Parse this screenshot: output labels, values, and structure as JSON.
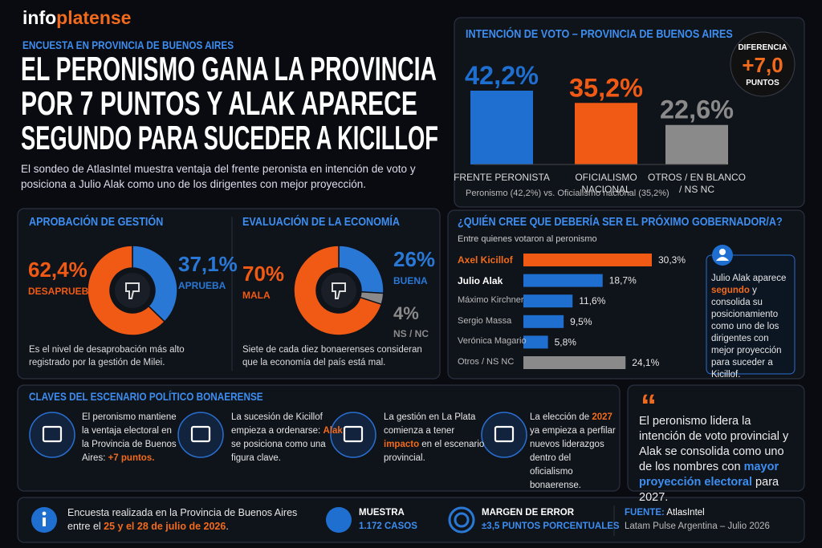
{
  "header": {
    "brand": [
      "info",
      "platense"
    ],
    "kicker": "ENCUESTA EN PROVINCIA DE BUENOS AIRES",
    "headline": [
      "EL PERONISMO GANA LA PROVINCIA",
      "POR 7 PUNTOS Y ALAK APARECE",
      "SEGUNDO PARA SUCEDER A KICILLOF"
    ],
    "intro": "El sondeo de AtlasIntel muestra ventaja del frente peronista en intención de voto y posiciona a Julio Alak como uno de los dirigentes con mejor proyección."
  },
  "chart_data": [
    {
      "type": "bar",
      "title": "INTENCIÓN DE VOTO – PROVINCIA DE BUENOS AIRES",
      "categories": [
        "FRENTE PERONISTA",
        "OFICIALISMO NACIONAL",
        "OTROS / EN BLANCO / NS NC"
      ],
      "values": [
        42.2,
        35.2,
        22.6
      ],
      "value_labels": [
        "42,2%",
        "35,2%",
        "22,6%"
      ],
      "colors": [
        "#1f6fd1",
        "#f05a14",
        "#8a8a8a"
      ],
      "note": "Peronismo (42,2%) vs. Oficialismo nacional (35,2%)"
    },
    {
      "type": "pie",
      "donut": true,
      "title": "APROBACIÓN DE GESTIÓN",
      "categories": [
        "APRUEBA",
        "DESAPRUEBA"
      ],
      "values": [
        37.1,
        62.4
      ],
      "value_labels": [
        "37,1%",
        "62,4%"
      ],
      "colors": [
        "#2a78d6",
        "#f05a14"
      ],
      "note": "Es el nivel de desaprobación más alto registrado por la gestión de Milei."
    },
    {
      "type": "pie",
      "donut": true,
      "title": "EVALUACIÓN DE LA ECONOMÍA",
      "categories": [
        "BUENA",
        "NS / NC",
        "MALA"
      ],
      "values": [
        26,
        4,
        70
      ],
      "value_labels": [
        "26%",
        "4%",
        "70%"
      ],
      "colors": [
        "#2a78d6",
        "#8a8a8a",
        "#f05a14"
      ],
      "note": "Siete de cada diez bonaerenses consideran que la economía del país está mal."
    },
    {
      "type": "bar",
      "horizontal": true,
      "title": "¿QUIÉN CREE QUE DEBERÍA SER EL PRÓXIMO GOBERNADOR/A?",
      "subtitle": "Entre quienes votaron al peronismo",
      "categories": [
        "Axel Kicillof",
        "Julio Alak",
        "Máximo Kirchner",
        "Sergio Massa",
        "Verónica Magario",
        "Otros / NS NC"
      ],
      "values": [
        30.3,
        18.7,
        11.6,
        9.5,
        5.8,
        24.1
      ],
      "value_labels": [
        "30,3%",
        "18,7%",
        "11,6%",
        "9,5%",
        "5,8%",
        "24,1%"
      ],
      "colors": [
        "#f05a14",
        "#1f6fd1",
        "#1f6fd1",
        "#1f6fd1",
        "#1f6fd1",
        "#8a8a8a"
      ]
    }
  ],
  "difference": {
    "label": "DIFERENCIA",
    "value": "+7,0",
    "unit": "PUNTOS"
  },
  "governor_callout": [
    "Julio Alak aparece ",
    "segundo",
    " y consolida su posicionamiento como uno de los dirigentes con mejor proyección para suceder a Kicillof."
  ],
  "keys": {
    "title": "CLAVES DEL ESCENARIO POLÍTICO BONAERENSE",
    "items": [
      [
        "El peronismo mantiene la ventaja electoral en la Provincia de Buenos Aires: ",
        "+7 puntos."
      ],
      [
        "La sucesión de Kicillof empieza a ordenarse: ",
        "Alak",
        " se posiciona como una figura clave."
      ],
      [
        "La gestión en La Plata comienza a tener ",
        "impacto",
        " en el escenario provincial."
      ],
      [
        "La elección de ",
        "2027",
        " ya empieza a perfilar nuevos liderazgos dentro del oficialismo bonaerense."
      ]
    ]
  },
  "quote": {
    "mark": "“",
    "parts": [
      "El peronismo lidera la intención de voto provincial y Alak se consolida como uno de los nombres con ",
      "mayor proyección electoral",
      " para 2027."
    ]
  },
  "footer": {
    "survey": [
      "Encuesta realizada en la Provincia de Buenos Aires entre el ",
      "25 y el 28 de julio de 2026",
      "."
    ],
    "sample_label": "MUESTRA",
    "sample_value": "1.172 CASOS",
    "margin_label": "MARGEN DE ERROR",
    "margin_value": "±3,5 PUNTOS PORCENTUALES",
    "source_label": "FUENTE:",
    "source_name": "AtlasIntel",
    "source_detail": "Latam Pulse Argentina – Julio 2026"
  }
}
